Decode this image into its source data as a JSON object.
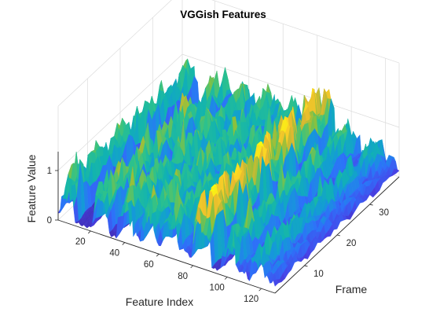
{
  "chart_data": {
    "type": "surface",
    "title": "VGGish Features",
    "xlabel": "Feature Index",
    "ylabel": "Frame",
    "zlabel": "Feature Value",
    "xticks": [
      "20",
      "40",
      "60",
      "80",
      "100",
      "120"
    ],
    "yticks": [
      "10",
      "20",
      "30"
    ],
    "zticks": [
      "0",
      "1"
    ],
    "xlim": [
      1,
      128
    ],
    "ylim": [
      1,
      39
    ],
    "zlim": [
      0,
      1.5
    ],
    "grid": true,
    "colormap": "parula",
    "colors": [
      "#3E26A8",
      "#4744E8",
      "#2D72F9",
      "#149AD8",
      "#11B3B1",
      "#2FC28A",
      "#8BC13D",
      "#E3B82F",
      "#FBD426",
      "#F9FB0E"
    ],
    "summary": {
      "num_features": 128,
      "num_frames": 39,
      "min_value": 0,
      "max_value": 1.45,
      "high_bands": [
        {
          "feature_start": 3,
          "feature_end": 10,
          "peak_value": 0.95
        },
        {
          "feature_start": 22,
          "feature_end": 30,
          "peak_value": 1.05
        },
        {
          "feature_start": 36,
          "feature_end": 44,
          "peak_value": 1.0
        },
        {
          "feature_start": 50,
          "feature_end": 58,
          "peak_value": 1.0
        },
        {
          "feature_start": 63,
          "feature_end": 71,
          "peak_value": 0.95
        },
        {
          "feature_start": 80,
          "feature_end": 90,
          "peak_value": 1.45
        },
        {
          "feature_start": 97,
          "feature_end": 105,
          "peak_value": 0.9
        },
        {
          "feature_start": 114,
          "feature_end": 121,
          "peak_value": 0.75
        }
      ],
      "moderate_bands": [
        {
          "feature_start": 44,
          "feature_end": 48,
          "peak_value": 0.45
        },
        {
          "feature_start": 58,
          "feature_end": 62,
          "peak_value": 0.4
        },
        {
          "feature_start": 71,
          "feature_end": 77,
          "peak_value": 0.4
        },
        {
          "feature_start": 106,
          "feature_end": 112,
          "peak_value": 0.35
        },
        {
          "feature_start": 122,
          "feature_end": 127,
          "peak_value": 0.4
        }
      ],
      "low_bands": [
        {
          "feature_start": 11,
          "feature_end": 20,
          "peak_value": 0.1
        },
        {
          "feature_start": 31,
          "feature_end": 35,
          "peak_value": 0.1
        },
        {
          "feature_start": 91,
          "feature_end": 95,
          "peak_value": 0.1
        }
      ]
    }
  }
}
